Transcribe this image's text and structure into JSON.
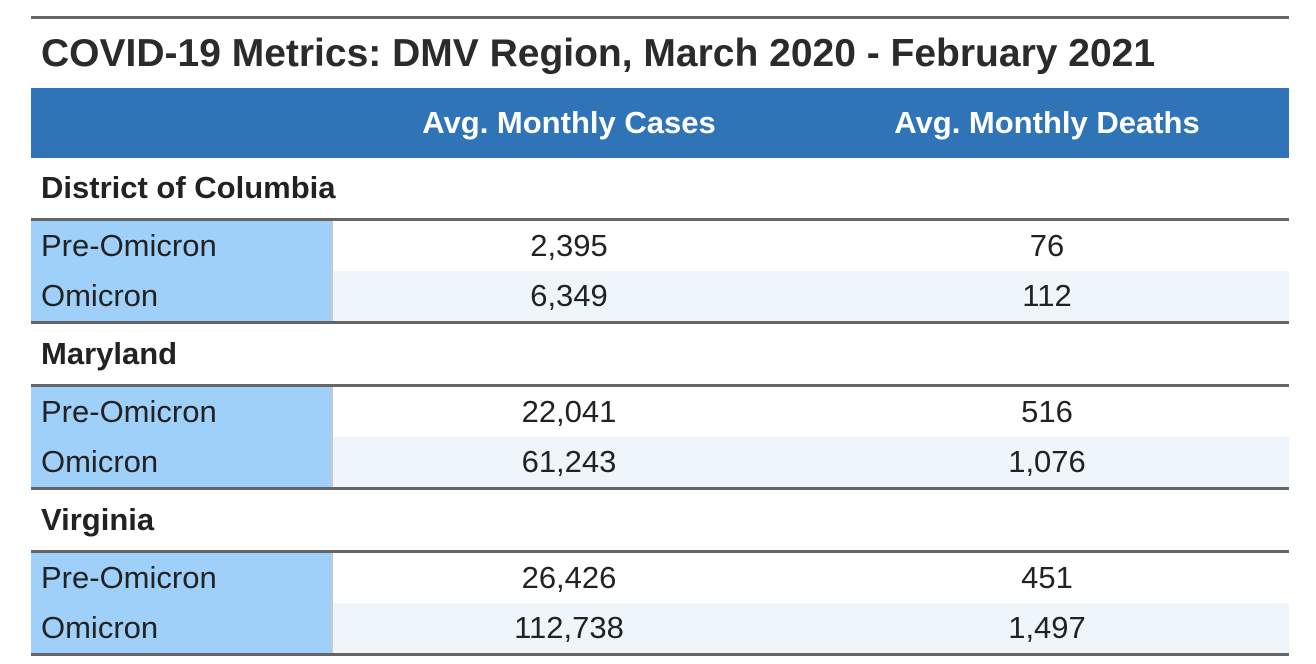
{
  "chart_data": {
    "type": "table",
    "title": "COVID-19 Metrics: DMV Region, March 2020 - February 2021",
    "columns": [
      "",
      "Avg. Monthly Cases",
      "Avg. Monthly Deaths"
    ],
    "groups": [
      {
        "name": "District of Columbia",
        "rows": [
          {
            "label": "Pre-Omicron",
            "cases": "2,395",
            "deaths": "76"
          },
          {
            "label": "Omicron",
            "cases": "6,349",
            "deaths": "112"
          }
        ]
      },
      {
        "name": "Maryland",
        "rows": [
          {
            "label": "Pre-Omicron",
            "cases": "22,041",
            "deaths": "516"
          },
          {
            "label": "Omicron",
            "cases": "61,243",
            "deaths": "1,076"
          }
        ]
      },
      {
        "name": "Virginia",
        "rows": [
          {
            "label": "Pre-Omicron",
            "cases": "26,426",
            "deaths": "451"
          },
          {
            "label": "Omicron",
            "cases": "112,738",
            "deaths": "1,497"
          }
        ]
      }
    ]
  },
  "colors": {
    "header_bg": "#2f74b7",
    "label_bg": "#9ed0f9",
    "alt_row_bg": "#eef5fb",
    "rule": "#666666"
  }
}
